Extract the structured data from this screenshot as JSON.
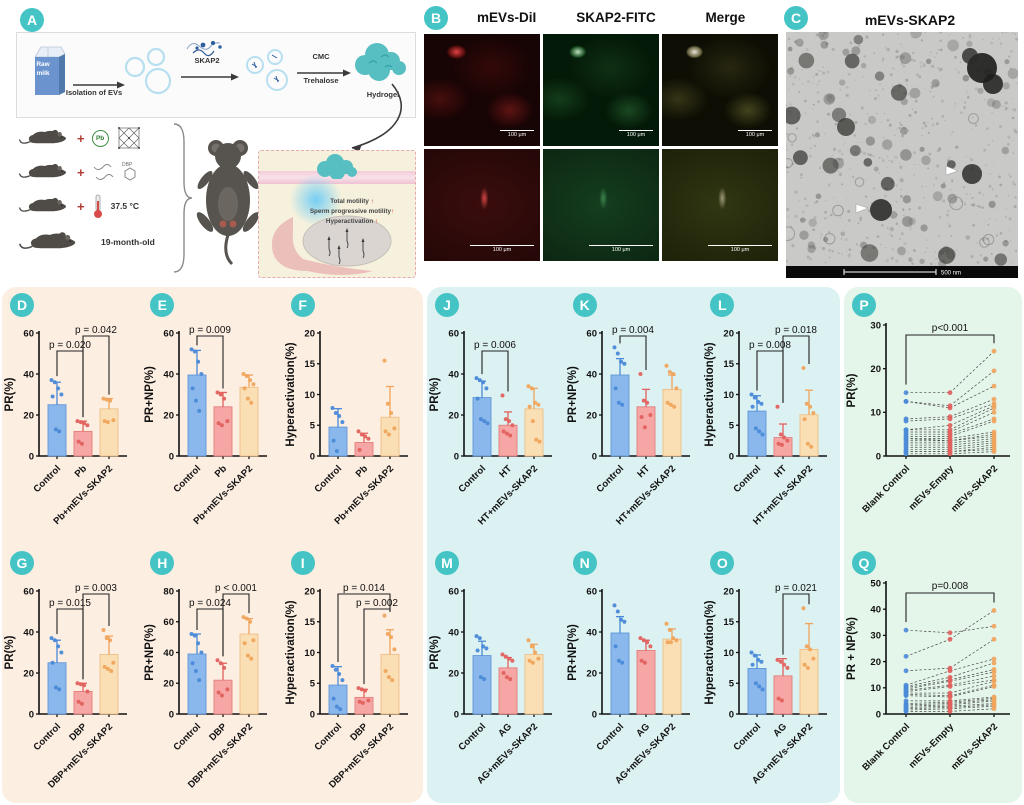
{
  "panels": {
    "A": {
      "label": "A",
      "milk": {
        "line1": "Raw",
        "line2": "milk"
      },
      "steps": {
        "isolation": "Isolation of EVs",
        "skap2": "SKAP2",
        "cmc": "CMC",
        "trehalose": "Trehalose",
        "hydrogel": "Hydrogel"
      },
      "treatments": {
        "pb": "Pb",
        "dbp": "DBP",
        "heat": "37.5 °C",
        "age": "19-month-old"
      },
      "inset": {
        "lines": [
          {
            "text": "Total motility",
            "arrow": "↑"
          },
          {
            "text": "Sperm progressive motility",
            "arrow": "↑"
          },
          {
            "text": "Hyperactivation",
            "arrow": "↑"
          }
        ]
      }
    },
    "B": {
      "label": "B",
      "columns": [
        "mEVs-DiI",
        "SKAP2-FITC",
        "Merge"
      ],
      "scale_bar": "100 μm"
    },
    "C": {
      "label": "C",
      "title": "mEVs-SKAP2",
      "scale_bar": "500 nm"
    }
  },
  "chart_style": {
    "bar_fills": [
      "#8bb8ec",
      "#f6a6a4",
      "#fadfb5"
    ],
    "bar_strokes": [
      "#5f96d8",
      "#e2807e",
      "#eebf85"
    ],
    "dot_colors": [
      "#4a89d8",
      "#e2615e",
      "#f0a45c"
    ],
    "accent_teal": "#45c4c5"
  },
  "chart_data": [
    {
      "id": "D",
      "type": "bar",
      "ylabel": "PR(%)",
      "ylim": [
        0,
        60
      ],
      "yticks": [
        0,
        20,
        40,
        60
      ],
      "categories": [
        "Control",
        "Pb",
        "Pb+mEVs-SKAP2"
      ],
      "means": [
        25,
        12,
        23
      ],
      "errors": [
        11,
        5,
        5
      ],
      "dots": [
        [
          37,
          36,
          33,
          30,
          29,
          13,
          12
        ],
        [
          17,
          16.5,
          16,
          15,
          7,
          6
        ],
        [
          28,
          27.5,
          27,
          17.5,
          17,
          16.5
        ]
      ],
      "pvalues": [
        {
          "from": 0,
          "to": 1,
          "label": "p = 0.020",
          "level": 0
        },
        {
          "from": 1,
          "to": 2,
          "label": "p = 0.042",
          "level": 1
        }
      ]
    },
    {
      "id": "E",
      "type": "bar",
      "ylabel": "PR+NP(%)",
      "ylim": [
        0,
        60
      ],
      "yticks": [
        0,
        20,
        40,
        60
      ],
      "categories": [
        "Control",
        "Pb",
        "Pb+mEVs-SKAP2"
      ],
      "means": [
        39.5,
        24,
        33.5
      ],
      "errors": [
        12,
        7,
        6
      ],
      "dots": [
        [
          52,
          51,
          46,
          40,
          33,
          27,
          22
        ],
        [
          31,
          30,
          28,
          17,
          16,
          15
        ],
        [
          40,
          39,
          37,
          35,
          33,
          28,
          26
        ]
      ],
      "pvalues": [
        {
          "from": 0,
          "to": 1,
          "label": "p = 0.009",
          "level": 1
        }
      ]
    },
    {
      "id": "F",
      "type": "bar",
      "ylabel": "Hyperactivation(%)",
      "ylim": [
        0,
        20
      ],
      "yticks": [
        0,
        5,
        10,
        15,
        20
      ],
      "categories": [
        "Control",
        "Pb",
        "Pb+mEVs-SKAP2"
      ],
      "means": [
        4.7,
        2.2,
        6.3
      ],
      "errors": [
        3,
        1.5,
        5
      ],
      "dots": [
        [
          7.8,
          7,
          6.5,
          5.5,
          2.5,
          0.8
        ],
        [
          4,
          3.5,
          3.2,
          2.8,
          1
        ],
        [
          15.5,
          8.5,
          7,
          4.5,
          4,
          3.5
        ]
      ],
      "pvalues": []
    },
    {
      "id": "G",
      "type": "bar",
      "ylabel": "PR(%)",
      "ylim": [
        0,
        60
      ],
      "yticks": [
        0,
        20,
        40,
        60
      ],
      "categories": [
        "Control",
        "DBP",
        "DBP+mEVs-SKAP2"
      ],
      "means": [
        25,
        11,
        29
      ],
      "errors": [
        11,
        4,
        9
      ],
      "dots": [
        [
          37,
          36,
          33,
          30,
          25,
          13,
          12
        ],
        [
          15,
          14.5,
          14,
          11,
          6,
          5
        ],
        [
          41,
          37,
          36,
          25,
          23,
          22,
          21
        ]
      ],
      "pvalues": [
        {
          "from": 0,
          "to": 1,
          "label": "p = 0.015",
          "level": 0
        },
        {
          "from": 1,
          "to": 2,
          "label": "p = 0.003",
          "level": 1
        }
      ]
    },
    {
      "id": "H",
      "type": "bar",
      "ylabel": "PR+NP(%)",
      "ylim": [
        0,
        80
      ],
      "yticks": [
        0,
        20,
        40,
        60,
        80
      ],
      "categories": [
        "Control",
        "DBP",
        "DBP+mEVs-SKAP2"
      ],
      "means": [
        39,
        22,
        52
      ],
      "errors": [
        13,
        11,
        10
      ],
      "dots": [
        [
          52,
          51,
          46,
          40,
          33,
          28,
          22
        ],
        [
          35,
          33,
          30,
          16,
          14,
          12
        ],
        [
          63,
          62,
          60,
          48,
          46,
          38,
          36
        ]
      ],
      "pvalues": [
        {
          "from": 0,
          "to": 1,
          "label": "p = 0.024",
          "level": 0
        },
        {
          "from": 1,
          "to": 2,
          "label": "p < 0.001",
          "level": 1
        }
      ]
    },
    {
      "id": "I",
      "type": "bar",
      "ylabel": "Hyperactivation(%)",
      "ylim": [
        0,
        20
      ],
      "yticks": [
        0,
        5,
        10,
        15,
        20
      ],
      "categories": [
        "Control",
        "DBP",
        "DBP+mEVs-SKAP2"
      ],
      "means": [
        4.7,
        2.7,
        9.7
      ],
      "errors": [
        3,
        1.3,
        4
      ],
      "dots": [
        [
          7.8,
          7.2,
          6.5,
          5.5,
          2.5,
          1.2,
          0.8
        ],
        [
          4.2,
          4,
          3.8,
          2.2,
          2,
          1.8
        ],
        [
          16,
          13,
          12.5,
          10.5,
          7,
          6,
          5.5
        ]
      ],
      "pvalues": [
        {
          "from": 0,
          "to": 2,
          "label": "p = 0.014",
          "level": 1
        },
        {
          "from": 1,
          "to": 2,
          "label": "p = 0.002",
          "level": 0
        }
      ]
    },
    {
      "id": "J",
      "type": "bar",
      "ylabel": "PR(%)",
      "ylim": [
        0,
        60
      ],
      "yticks": [
        0,
        20,
        40,
        60
      ],
      "categories": [
        "Control",
        "HT",
        "HT+mEVs-SKAP2"
      ],
      "means": [
        28.5,
        15,
        23
      ],
      "errors": [
        8,
        6.5,
        10
      ],
      "dots": [
        [
          38,
          37,
          36,
          33,
          28,
          18,
          17,
          16
        ],
        [
          29.5,
          18,
          17,
          15,
          12,
          11,
          10
        ],
        [
          34,
          33,
          26,
          25,
          24,
          17,
          8,
          7
        ]
      ],
      "pvalues": [
        {
          "from": 0,
          "to": 1,
          "label": "p = 0.006",
          "level": 0
        }
      ]
    },
    {
      "id": "K",
      "type": "bar",
      "ylabel": "PR+NP(%)",
      "ylim": [
        0,
        60
      ],
      "yticks": [
        0,
        20,
        40,
        60
      ],
      "categories": [
        "Control",
        "HT",
        "HT+mEVs-SKAP2"
      ],
      "means": [
        39.5,
        24,
        32.5
      ],
      "errors": [
        8,
        8.5,
        7
      ],
      "dots": [
        [
          53,
          50,
          46,
          45,
          33,
          26,
          25
        ],
        [
          40,
          27,
          26,
          20,
          19,
          14
        ],
        [
          44,
          41,
          40,
          33,
          26,
          25,
          24
        ]
      ],
      "pvalues": [
        {
          "from": 0,
          "to": 1,
          "label": "p = 0.004",
          "level": 1
        }
      ]
    },
    {
      "id": "L",
      "type": "bar",
      "ylabel": "Hyperactivation(%)",
      "ylim": [
        0,
        20
      ],
      "yticks": [
        0,
        5,
        10,
        15,
        20
      ],
      "categories": [
        "Control",
        "HT",
        "HT+mEVs-SKAP2"
      ],
      "means": [
        7.3,
        3,
        6.7
      ],
      "errors": [
        2.5,
        2.2,
        4
      ],
      "dots": [
        [
          10,
          9.5,
          8.8,
          8.5,
          8,
          4.5,
          4,
          3.5
        ],
        [
          8,
          3.5,
          3,
          2.5,
          2,
          1.8
        ],
        [
          14.3,
          8.5,
          8,
          7,
          6,
          2,
          1.5
        ]
      ],
      "pvalues": [
        {
          "from": 0,
          "to": 1,
          "label": "p = 0.008",
          "level": 0
        },
        {
          "from": 1,
          "to": 2,
          "label": "p = 0.018",
          "level": 1
        }
      ]
    },
    {
      "id": "M",
      "type": "bar",
      "ylabel": "PR(%)",
      "ylim": [
        0,
        60
      ],
      "yticks": [
        0,
        20,
        40,
        60
      ],
      "categories": [
        "Control",
        "AG",
        "AG+mEVs-SKAP2"
      ],
      "means": [
        28.5,
        22.5,
        29
      ],
      "errors": [
        7,
        5,
        5
      ],
      "dots": [
        [
          38,
          37,
          33,
          32,
          31,
          18,
          17
        ],
        [
          29,
          28,
          27,
          26,
          20,
          18,
          17
        ],
        [
          36,
          33,
          30,
          27,
          26,
          25
        ]
      ],
      "pvalues": []
    },
    {
      "id": "N",
      "type": "bar",
      "ylabel": "PR+NP(%)",
      "ylim": [
        0,
        60
      ],
      "yticks": [
        0,
        20,
        40,
        60
      ],
      "categories": [
        "Control",
        "AG",
        "AG+mEVs-SKAP2"
      ],
      "means": [
        39.5,
        31,
        36.5
      ],
      "errors": [
        8,
        5,
        5
      ],
      "dots": [
        [
          53,
          50,
          46,
          45,
          33,
          26,
          25
        ],
        [
          37,
          36,
          35,
          33,
          26,
          25
        ],
        [
          44,
          41,
          37,
          36,
          35,
          35
        ]
      ],
      "pvalues": []
    },
    {
      "id": "O",
      "type": "bar",
      "ylabel": "Hyperactivation(%)",
      "ylim": [
        0,
        20
      ],
      "yticks": [
        0,
        5,
        10,
        15,
        20
      ],
      "categories": [
        "Control",
        "AG",
        "AG+mEVs-SKAP2"
      ],
      "means": [
        7.4,
        6.2,
        10.5
      ],
      "errors": [
        2.2,
        2.8,
        4.2
      ],
      "dots": [
        [
          10,
          9.5,
          8.8,
          8.5,
          8,
          5,
          4.5,
          4
        ],
        [
          8.8,
          8.5,
          8,
          7.5,
          2.5,
          2.2
        ],
        [
          17.2,
          11,
          10.5,
          9,
          8,
          7.5
        ]
      ],
      "pvalues": [
        {
          "from": 1,
          "to": 2,
          "label": "p = 0.021",
          "level": 1
        }
      ]
    },
    {
      "id": "P",
      "type": "paired-scatter",
      "ylabel": "PR(%)",
      "ylim": [
        0,
        30
      ],
      "yticks": [
        0,
        10,
        20,
        30
      ],
      "categories": [
        "Blank Control",
        "mEVs-Empty",
        "mEVs-SKAP2"
      ],
      "pairs": [
        [
          14.5,
          14.5,
          24
        ],
        [
          12.5,
          11.5,
          19.5
        ],
        [
          12.5,
          11,
          16
        ],
        [
          8.5,
          9,
          13
        ],
        [
          8,
          8.5,
          12
        ],
        [
          6,
          7,
          11.5
        ],
        [
          6,
          6,
          11
        ],
        [
          5.5,
          5.5,
          10
        ],
        [
          5,
          5,
          8.5
        ],
        [
          4.5,
          4.5,
          8
        ],
        [
          4,
          4,
          5.5
        ],
        [
          4,
          3.5,
          5
        ],
        [
          3.5,
          3.5,
          4.5
        ],
        [
          3,
          3,
          4
        ],
        [
          2.5,
          2.5,
          3.5
        ],
        [
          2,
          2,
          3
        ],
        [
          1.5,
          1.5,
          2.5
        ],
        [
          1,
          1,
          2
        ],
        [
          1,
          1,
          1.5
        ],
        [
          0.5,
          0.5,
          1
        ]
      ],
      "pvalue": {
        "from": 0,
        "to": 2,
        "label": "p<0.001"
      }
    },
    {
      "id": "Q",
      "type": "paired-scatter",
      "ylabel": "PR + NP(%)",
      "ylim": [
        0,
        50
      ],
      "yticks": [
        0,
        10,
        20,
        30,
        40,
        50
      ],
      "categories": [
        "Blank Control",
        "mEVs-Empty",
        "mEVs-SKAP2"
      ],
      "pairs": [
        [
          32,
          31,
          33.5
        ],
        [
          22,
          28.5,
          39.5
        ],
        [
          16.5,
          17.5,
          28.5
        ],
        [
          11,
          16.5,
          21
        ],
        [
          10.5,
          14,
          19.5
        ],
        [
          10,
          13,
          17
        ],
        [
          9.5,
          12.5,
          16
        ],
        [
          9,
          11,
          14.5
        ],
        [
          8.5,
          10.5,
          13
        ],
        [
          8,
          8,
          12.5
        ],
        [
          7.5,
          7,
          11
        ],
        [
          7,
          6.5,
          10.5
        ],
        [
          5,
          5,
          6.5
        ],
        [
          4,
          4.5,
          6
        ],
        [
          3.5,
          4,
          5.5
        ],
        [
          3,
          3.5,
          5
        ],
        [
          2.5,
          3,
          4
        ],
        [
          2,
          2.5,
          3.5
        ],
        [
          1.5,
          2,
          3
        ],
        [
          1,
          1,
          2
        ]
      ],
      "pvalue": {
        "from": 0,
        "to": 2,
        "label": "p=0.008"
      }
    }
  ]
}
